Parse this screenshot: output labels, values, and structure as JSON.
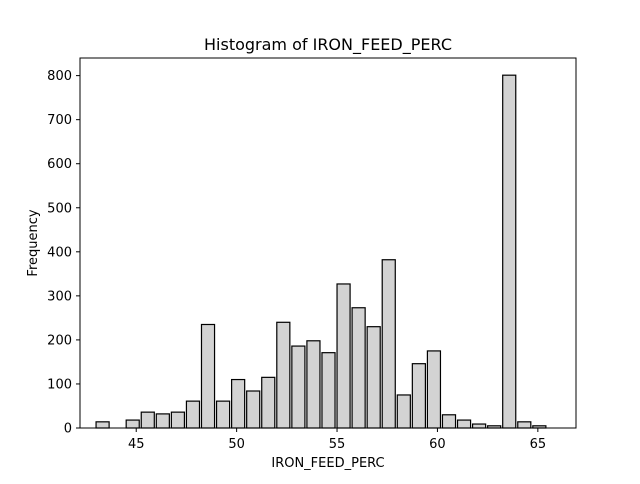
{
  "chart_data": {
    "type": "bar",
    "title": "Histogram of IRON_FEED_PERC",
    "xlabel": "IRON_FEED_PERC",
    "ylabel": "Frequency",
    "xlim": [
      42.2,
      66.9
    ],
    "ylim": [
      0,
      840
    ],
    "xticks": [
      45,
      50,
      55,
      60,
      65
    ],
    "yticks": [
      0,
      100,
      200,
      300,
      400,
      500,
      600,
      700,
      800
    ],
    "grid": false,
    "bar_fill": "#d3d3d3",
    "bar_edge": "#000000",
    "bars": [
      {
        "x0": 42.95,
        "x1": 43.7,
        "value": 14
      },
      {
        "x0": 44.45,
        "x1": 45.2,
        "value": 18
      },
      {
        "x0": 45.2,
        "x1": 45.95,
        "value": 36
      },
      {
        "x0": 45.95,
        "x1": 46.7,
        "value": 32
      },
      {
        "x0": 46.7,
        "x1": 47.45,
        "value": 36
      },
      {
        "x0": 47.45,
        "x1": 48.2,
        "value": 61
      },
      {
        "x0": 48.2,
        "x1": 48.95,
        "value": 235
      },
      {
        "x0": 48.95,
        "x1": 49.7,
        "value": 61
      },
      {
        "x0": 49.7,
        "x1": 50.45,
        "value": 110
      },
      {
        "x0": 50.45,
        "x1": 51.2,
        "value": 84
      },
      {
        "x0": 51.2,
        "x1": 51.95,
        "value": 115
      },
      {
        "x0": 51.95,
        "x1": 52.7,
        "value": 240
      },
      {
        "x0": 52.7,
        "x1": 53.45,
        "value": 186
      },
      {
        "x0": 53.45,
        "x1": 54.2,
        "value": 198
      },
      {
        "x0": 54.2,
        "x1": 54.95,
        "value": 171
      },
      {
        "x0": 54.95,
        "x1": 55.7,
        "value": 327
      },
      {
        "x0": 55.7,
        "x1": 56.45,
        "value": 273
      },
      {
        "x0": 56.45,
        "x1": 57.2,
        "value": 230
      },
      {
        "x0": 57.2,
        "x1": 57.95,
        "value": 382
      },
      {
        "x0": 57.95,
        "x1": 58.7,
        "value": 75
      },
      {
        "x0": 58.7,
        "x1": 59.45,
        "value": 146
      },
      {
        "x0": 59.45,
        "x1": 60.2,
        "value": 175
      },
      {
        "x0": 60.2,
        "x1": 60.95,
        "value": 30
      },
      {
        "x0": 60.95,
        "x1": 61.7,
        "value": 18
      },
      {
        "x0": 61.7,
        "x1": 62.45,
        "value": 9
      },
      {
        "x0": 62.45,
        "x1": 63.2,
        "value": 5
      },
      {
        "x0": 63.2,
        "x1": 63.95,
        "value": 801
      },
      {
        "x0": 63.95,
        "x1": 64.7,
        "value": 14
      },
      {
        "x0": 64.7,
        "x1": 65.45,
        "value": 5
      }
    ]
  }
}
